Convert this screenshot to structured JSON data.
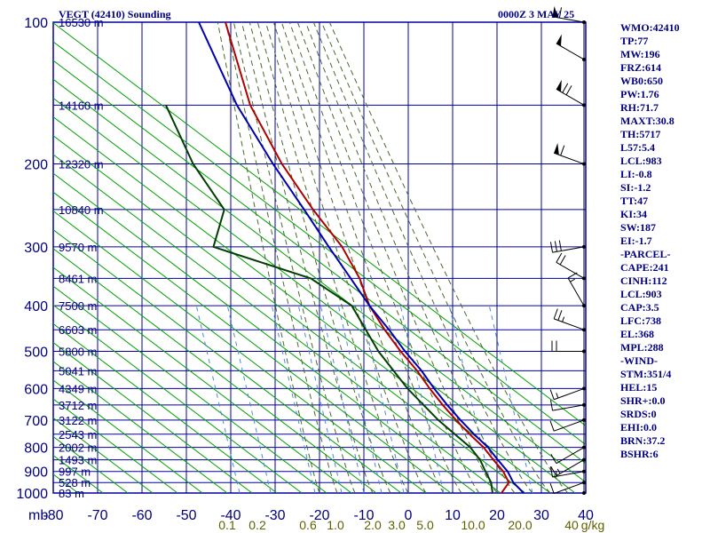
{
  "chart_data": {
    "type": "skew-t sounding",
    "title_left": "VEGT (42410) Sounding",
    "title_right": "0000Z  3 MAY 25",
    "x_unit_label": "mb",
    "xlim": [
      -80,
      40
    ],
    "ylim_mb": [
      1000,
      100
    ],
    "pressure_ticks": [
      100,
      200,
      300,
      400,
      500,
      600,
      700,
      800,
      900,
      1000
    ],
    "temperature_ticks": [
      -80,
      -70,
      -60,
      -50,
      -40,
      -30,
      -20,
      -10,
      0,
      10,
      20,
      30,
      40
    ],
    "temperature_tick_labels": [
      "-80",
      "-70",
      "-60",
      "-50",
      "-40",
      "-30",
      "-20",
      "-10",
      "0",
      "10",
      "20",
      "30",
      "40"
    ],
    "mixing_ratio_labels": [
      "0.1",
      "0.2",
      "0.6",
      "1.0",
      "2.0",
      "3.0",
      "5.0",
      "10.0",
      "20.0",
      "40",
      "g/kg"
    ],
    "height_labels": [
      {
        "p": 100,
        "text": "16530 m"
      },
      {
        "p": 150,
        "text": "14160 m"
      },
      {
        "p": 200,
        "text": "12320 m"
      },
      {
        "p": 250,
        "text": "10840 m"
      },
      {
        "p": 300,
        "text": "9570 m"
      },
      {
        "p": 350,
        "text": "8461 m"
      },
      {
        "p": 400,
        "text": "7500 m"
      },
      {
        "p": 450,
        "text": "6603 m"
      },
      {
        "p": 500,
        "text": "5800 m"
      },
      {
        "p": 550,
        "text": "5041 m"
      },
      {
        "p": 600,
        "text": "4349 m"
      },
      {
        "p": 650,
        "text": "3712 m"
      },
      {
        "p": 700,
        "text": "3122 m"
      },
      {
        "p": 750,
        "text": "2543 m"
      },
      {
        "p": 800,
        "text": "2002 m"
      },
      {
        "p": 850,
        "text": "1493 m"
      },
      {
        "p": 900,
        "text": "997 m"
      },
      {
        "p": 950,
        "text": "528 m"
      },
      {
        "p": 1000,
        "text": "83 m"
      }
    ],
    "series": [
      {
        "key": "temperature",
        "color": "#b00000",
        "points": [
          [
            1000,
            21
          ],
          [
            950,
            22
          ],
          [
            900,
            20
          ],
          [
            850,
            17
          ],
          [
            800,
            14
          ],
          [
            750,
            10
          ],
          [
            700,
            6
          ],
          [
            650,
            2
          ],
          [
            600,
            -2
          ],
          [
            550,
            -6
          ],
          [
            500,
            -11
          ],
          [
            450,
            -16
          ],
          [
            400,
            -21
          ],
          [
            350,
            -25
          ],
          [
            300,
            -31
          ],
          [
            250,
            -40
          ],
          [
            200,
            -50
          ],
          [
            150,
            -61
          ],
          [
            100,
            -72
          ]
        ]
      },
      {
        "key": "dewpoint",
        "color": "#004000",
        "points": [
          [
            1000,
            19
          ],
          [
            950,
            18
          ],
          [
            900,
            16
          ],
          [
            850,
            14
          ],
          [
            800,
            11
          ],
          [
            700,
            2
          ],
          [
            600,
            -7
          ],
          [
            500,
            -16
          ],
          [
            400,
            -25
          ],
          [
            350,
            -36
          ],
          [
            300,
            -60
          ],
          [
            250,
            -60
          ],
          [
            200,
            -70
          ],
          [
            150,
            -80
          ]
        ]
      },
      {
        "key": "parcel",
        "color": "#0000b0",
        "points": [
          [
            1000,
            26
          ],
          [
            950,
            23
          ],
          [
            900,
            21
          ],
          [
            850,
            18
          ],
          [
            800,
            15
          ],
          [
            750,
            11
          ],
          [
            700,
            7
          ],
          [
            650,
            3
          ],
          [
            600,
            -1
          ],
          [
            550,
            -5
          ],
          [
            500,
            -10
          ],
          [
            450,
            -15
          ],
          [
            400,
            -21
          ],
          [
            350,
            -27
          ],
          [
            300,
            -34
          ],
          [
            250,
            -42
          ],
          [
            200,
            -52
          ],
          [
            150,
            -64
          ],
          [
            100,
            -78
          ]
        ]
      }
    ],
    "wind_barbs": [
      {
        "p": 1000,
        "dir": 180,
        "kt": 0
      },
      {
        "p": 950,
        "dir": 250,
        "kt": 10
      },
      {
        "p": 900,
        "dir": 260,
        "kt": 15
      },
      {
        "p": 850,
        "dir": 240,
        "kt": 15
      },
      {
        "p": 800,
        "dir": 240,
        "kt": 10
      },
      {
        "p": 700,
        "dir": 250,
        "kt": 10
      },
      {
        "p": 650,
        "dir": 260,
        "kt": 10
      },
      {
        "p": 600,
        "dir": 250,
        "kt": 15
      },
      {
        "p": 500,
        "dir": 270,
        "kt": 20
      },
      {
        "p": 450,
        "dir": 290,
        "kt": 25
      },
      {
        "p": 400,
        "dir": 330,
        "kt": 15
      },
      {
        "p": 350,
        "dir": 300,
        "kt": 20
      },
      {
        "p": 300,
        "dir": 260,
        "kt": 30
      },
      {
        "p": 200,
        "dir": 290,
        "kt": 60
      },
      {
        "p": 150,
        "dir": 300,
        "kt": 70
      },
      {
        "p": 120,
        "dir": 300,
        "kt": 50
      },
      {
        "p": 100,
        "dir": 280,
        "kt": 60
      }
    ],
    "colors": {
      "grid": "#0000a0",
      "dry_adiabat": "#00a000",
      "moist_adiabat": "#4a6a2a",
      "mixing_ratio": "#4a8ad8",
      "label": "#000080",
      "mixing_label": "#606000"
    }
  },
  "stats": [
    "WMO:42410",
    "TP:77",
    "MW:196",
    "FRZ:614",
    "WB0:650",
    "PW:1.76",
    "RH:71.7",
    "MAXT:30.8",
    "TH:5717",
    "L57:5.4",
    "LCL:983",
    "LI:-0.8",
    "SI:-1.2",
    "TT:47",
    "KI:34",
    "SW:187",
    "EI:-1.7",
    "-PARCEL-",
    "CAPE:241",
    "CINH:112",
    "LCL:903",
    "CAP:3.5",
    "LFC:738",
    "EL:368",
    "MPL:288",
    "-WIND-",
    "STM:351/4",
    "HEL:15",
    "SHR+:0.0",
    "SRDS:0",
    "EHI:0.0",
    "BRN:37.2",
    "BSHR:6"
  ]
}
